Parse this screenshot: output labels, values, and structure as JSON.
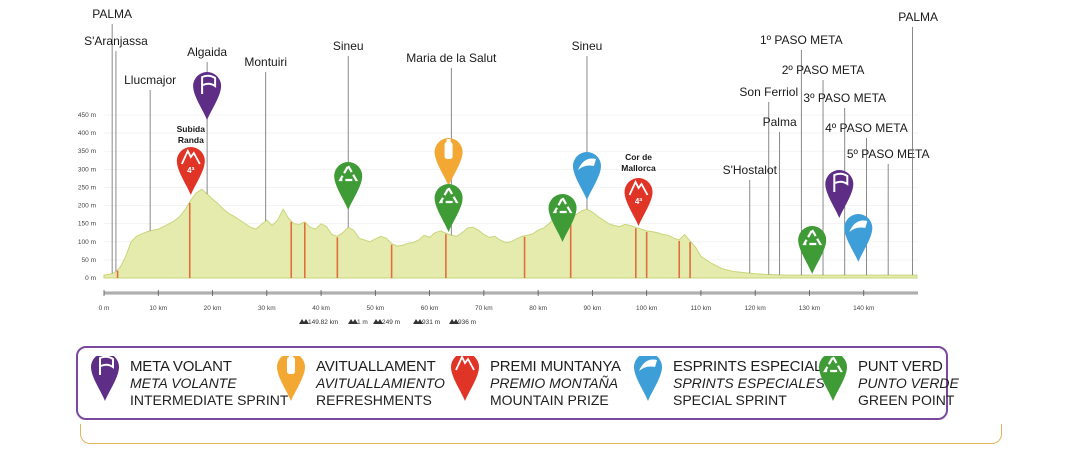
{
  "chart_data": {
    "type": "area",
    "title": "",
    "xlabel": "",
    "ylabel": "",
    "xlim": [
      0,
      150
    ],
    "ylim": [
      0,
      450
    ],
    "x_ticks": [
      "0 m",
      "10 km",
      "20 km",
      "30 km",
      "40 km",
      "50 km",
      "60 km",
      "70 km",
      "80 km",
      "90 km",
      "100 km",
      "110 km",
      "120 km",
      "130 km",
      "140 km"
    ],
    "y_ticks": [
      "0 m",
      "50 m",
      "100 m",
      "150 m",
      "200 m",
      "250 m",
      "300 m",
      "350 m",
      "400 m",
      "450 m"
    ],
    "profile": {
      "x": [
        0,
        1,
        2,
        3,
        4,
        5,
        6,
        7,
        8,
        9,
        10,
        11,
        12,
        13,
        14,
        15,
        16,
        17,
        18,
        19,
        20,
        21,
        22,
        23,
        24,
        25,
        26,
        27,
        28,
        29,
        30,
        31,
        32,
        33,
        34,
        35,
        36,
        37,
        38,
        39,
        40,
        41,
        42,
        43,
        44,
        45,
        46,
        47,
        48,
        49,
        50,
        51,
        52,
        53,
        54,
        55,
        56,
        57,
        58,
        59,
        60,
        61,
        62,
        63,
        64,
        65,
        66,
        67,
        68,
        69,
        70,
        71,
        72,
        73,
        74,
        75,
        76,
        77,
        78,
        79,
        80,
        81,
        82,
        83,
        84,
        85,
        86,
        87,
        88,
        89,
        90,
        91,
        92,
        93,
        94,
        95,
        96,
        97,
        98,
        99,
        100,
        101,
        102,
        103,
        104,
        105,
        106,
        107,
        108,
        109,
        110,
        112,
        114,
        116,
        118,
        120,
        122,
        124,
        126,
        128,
        130,
        132,
        134,
        136,
        138,
        140,
        142,
        144,
        146,
        148,
        149.8
      ],
      "y": [
        8,
        10,
        15,
        30,
        60,
        100,
        115,
        122,
        128,
        132,
        135,
        142,
        150,
        158,
        170,
        190,
        215,
        235,
        245,
        232,
        218,
        205,
        190,
        178,
        170,
        160,
        150,
        140,
        135,
        148,
        160,
        145,
        160,
        190,
        165,
        150,
        148,
        155,
        140,
        135,
        150,
        142,
        120,
        115,
        125,
        140,
        132,
        110,
        105,
        100,
        108,
        115,
        110,
        95,
        88,
        90,
        96,
        98,
        105,
        118,
        112,
        125,
        130,
        124,
        118,
        115,
        125,
        138,
        140,
        132,
        120,
        112,
        115,
        105,
        98,
        100,
        108,
        115,
        118,
        122,
        132,
        138,
        150,
        165,
        170,
        160,
        172,
        175,
        185,
        190,
        182,
        170,
        160,
        150,
        145,
        142,
        148,
        145,
        140,
        135,
        130,
        128,
        125,
        120,
        118,
        110,
        105,
        120,
        102,
        85,
        60,
        40,
        25,
        18,
        15,
        12,
        10,
        9,
        8,
        8,
        8,
        8,
        8,
        8,
        8,
        8,
        8,
        8,
        8,
        8,
        8
      ]
    },
    "red_markers_km": [
      2.5,
      15.8,
      34.5,
      37,
      43,
      53,
      63,
      77.5,
      86,
      98,
      100,
      106,
      108
    ],
    "places": [
      {
        "name": "PALMA",
        "km": 1.5,
        "label_y": 18
      },
      {
        "name": "S'Aranjassa",
        "km": 2.2,
        "label_y": 45
      },
      {
        "name": "Llucmajor",
        "km": 8.5,
        "label_y": 84
      },
      {
        "name": "Algaida",
        "km": 19,
        "label_y": 56
      },
      {
        "name": "Montuiri",
        "km": 29.8,
        "label_y": 66
      },
      {
        "name": "Sineu",
        "km": 45,
        "label_y": 50
      },
      {
        "name": "Maria de la Salut",
        "km": 64,
        "label_y": 62
      },
      {
        "name": "Sineu",
        "km": 89,
        "label_y": 50
      },
      {
        "name": "Son Ferriol",
        "km": 122.5,
        "label_y": 96
      },
      {
        "name": "Palma",
        "km": 124.5,
        "label_y": 126
      },
      {
        "name": "S'Hostalot",
        "km": 119,
        "label_y": 174
      },
      {
        "name": "1º PASO META",
        "km": 128.5,
        "label_y": 44
      },
      {
        "name": "2º PASO META",
        "km": 132.5,
        "label_y": 74
      },
      {
        "name": "3º PASO META",
        "km": 136.5,
        "label_y": 102
      },
      {
        "name": "4º PASO META",
        "km": 140.5,
        "label_y": 132
      },
      {
        "name": "5º PASO META",
        "km": 144.5,
        "label_y": 158
      },
      {
        "name": "PALMA",
        "km": 149,
        "label_y": 21
      }
    ],
    "climb_labels": [
      {
        "text": "Subida",
        "line2": "Randa",
        "cat": "4ª",
        "km": 16
      },
      {
        "text": "Cor de",
        "line2": "Mallorca",
        "cat": "4ª",
        "km": 98.5
      }
    ],
    "pins": [
      {
        "type": "meta",
        "km": 19,
        "tip_y": 120
      },
      {
        "type": "muntanya",
        "km": 16,
        "tip_y": 195
      },
      {
        "type": "verd",
        "km": 45,
        "tip_y": 210
      },
      {
        "type": "avituallament",
        "km": 63.5,
        "tip_y": 186
      },
      {
        "type": "verd",
        "km": 63.5,
        "tip_y": 232
      },
      {
        "type": "verd",
        "km": 84.5,
        "tip_y": 242
      },
      {
        "type": "sprint",
        "km": 89,
        "tip_y": 200
      },
      {
        "type": "muntanya",
        "km": 98.5,
        "tip_y": 226
      },
      {
        "type": "verd",
        "km": 130.5,
        "tip_y": 274
      },
      {
        "type": "meta",
        "km": 135.5,
        "tip_y": 218
      },
      {
        "type": "sprint",
        "km": 139,
        "tip_y": 262
      }
    ],
    "summary": {
      "distance": "149.82 km",
      "marker1": "1 m",
      "marker2": "249 m",
      "marker3": "931 m",
      "marker4": "936 m"
    },
    "legend_placement": "bottom"
  },
  "colors": {
    "profile_fill": "#e4ebad",
    "profile_line": "#c9d67a",
    "meta": "#5e2d86",
    "avituallament": "#f3a833",
    "muntanya": "#e03427",
    "sprint": "#3e9fd8",
    "verd": "#3f9b35",
    "legend_border": "#7b4a9e",
    "bottom_frame": "#e0b25a"
  },
  "legend": [
    {
      "type": "meta",
      "name": "META VOLANT",
      "es": "META VOLANTE",
      "en": "INTERMEDIATE SPRINT"
    },
    {
      "type": "avituallament",
      "name": "AVITUALLAMENT",
      "es": "AVITUALLAMIENTO",
      "en": "REFRESHMENTS"
    },
    {
      "type": "muntanya",
      "name": "PREMI MUNTANYA",
      "es": "PREMIO MONTAÑA",
      "en": "MOUNTAIN PRIZE"
    },
    {
      "type": "sprint",
      "name": "ESPRINTS ESPECIALS",
      "es": "SPRINTS ESPECIALES",
      "en": "SPECIAL SPRINT"
    },
    {
      "type": "verd",
      "name": "PUNT VERD",
      "es": "PUNTO VERDE",
      "en": "GREEN POINT"
    }
  ]
}
